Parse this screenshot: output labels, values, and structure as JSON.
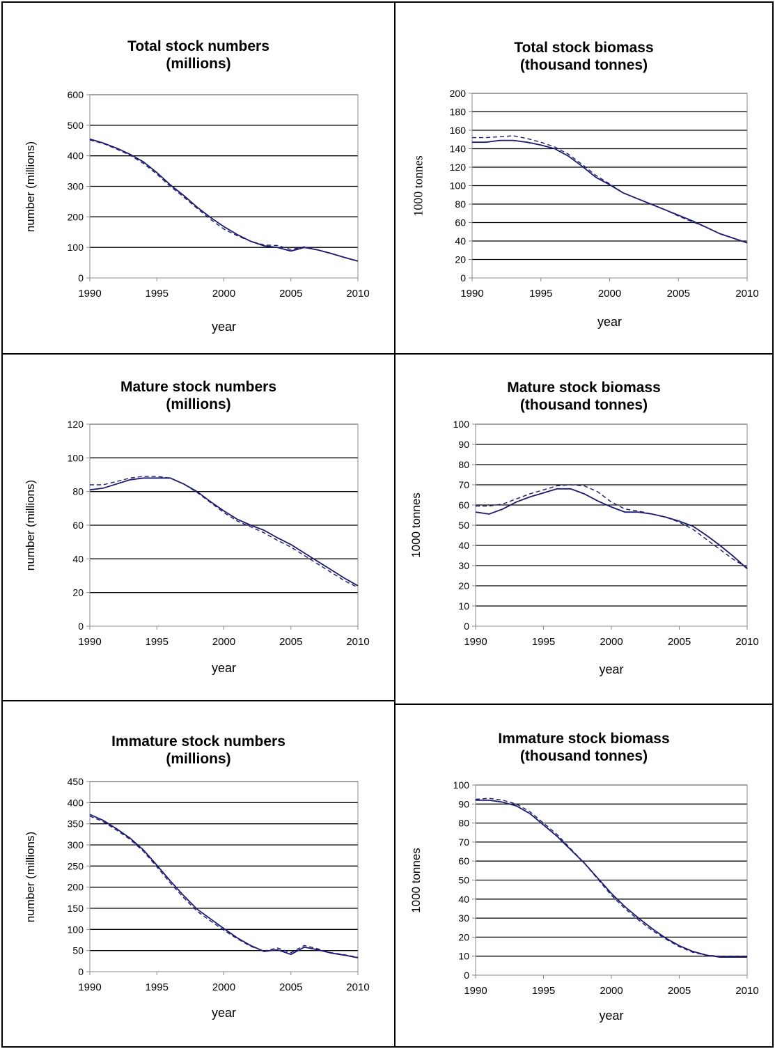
{
  "chart_data": [
    {
      "type": "line",
      "title": [
        "Total stock numbers",
        "(millions)"
      ],
      "xlabel": "year",
      "ylabel": "number (millions)",
      "ylim": [
        0,
        600
      ],
      "yticks": [
        0,
        100,
        200,
        300,
        400,
        500,
        600
      ],
      "xticks": [
        1990,
        1995,
        2000,
        2005,
        2010
      ],
      "x": [
        1990,
        1991,
        1992,
        1993,
        1994,
        1995,
        1996,
        1997,
        1998,
        1999,
        2000,
        2001,
        2002,
        2003,
        2004,
        2005,
        2006,
        2007,
        2008,
        2009,
        2010
      ],
      "series": [
        {
          "style": "solid",
          "values": [
            455,
            442,
            425,
            405,
            380,
            345,
            305,
            270,
            232,
            198,
            168,
            142,
            120,
            105,
            100,
            88,
            100,
            92,
            80,
            67,
            55
          ]
        },
        {
          "style": "dashed",
          "values": [
            452,
            440,
            422,
            402,
            375,
            340,
            300,
            265,
            228,
            192,
            160,
            138,
            120,
            108,
            106,
            93,
            102,
            92,
            80,
            67,
            55
          ]
        }
      ]
    },
    {
      "type": "line",
      "title": [
        "Total stock biomass",
        "(thousand tonnes)"
      ],
      "xlabel": "year",
      "ylabel": "1000 tonnes",
      "ylim": [
        0,
        200
      ],
      "yticks": [
        0,
        20,
        40,
        60,
        80,
        100,
        120,
        140,
        160,
        180,
        200
      ],
      "xticks": [
        1990,
        1995,
        2000,
        2005,
        2010
      ],
      "x": [
        1990,
        1991,
        1992,
        1993,
        1994,
        1995,
        1996,
        1997,
        1998,
        1999,
        2000,
        2001,
        2002,
        2003,
        2004,
        2005,
        2006,
        2007,
        2008,
        2009,
        2010
      ],
      "series": [
        {
          "style": "solid",
          "values": [
            147,
            147,
            149,
            149,
            147,
            144,
            140,
            132,
            121,
            109,
            101,
            92,
            86,
            80,
            74,
            68,
            62,
            55,
            48,
            43,
            38
          ]
        },
        {
          "style": "dashed",
          "values": [
            152,
            152,
            153,
            154,
            151,
            147,
            142,
            134,
            123,
            111,
            102,
            92,
            86,
            80,
            74,
            67,
            61,
            55,
            48,
            43,
            38
          ]
        }
      ]
    },
    {
      "type": "line",
      "title": [
        "Mature stock numbers",
        "(millions)"
      ],
      "xlabel": "year",
      "ylabel": "number (millions)",
      "ylim": [
        0,
        120
      ],
      "yticks": [
        0,
        20,
        40,
        60,
        80,
        100,
        120
      ],
      "xticks": [
        1990,
        1995,
        2000,
        2005,
        2010
      ],
      "x": [
        1990,
        1991,
        1992,
        1993,
        1994,
        1995,
        1996,
        1997,
        1998,
        1999,
        2000,
        2001,
        2002,
        2003,
        2004,
        2005,
        2006,
        2007,
        2008,
        2009,
        2010
      ],
      "series": [
        {
          "style": "solid",
          "values": [
            81,
            82,
            84.5,
            87,
            88,
            88,
            88,
            84.5,
            80,
            74,
            68.5,
            63.5,
            60,
            57,
            52.5,
            48.5,
            43.5,
            38.5,
            33.5,
            28.5,
            24
          ]
        },
        {
          "style": "dashed",
          "values": [
            84,
            84,
            86,
            88,
            89,
            89,
            88,
            84.5,
            79.5,
            73.5,
            67.5,
            62.5,
            59,
            55.5,
            51,
            47,
            42,
            37,
            32,
            27,
            23
          ]
        }
      ]
    },
    {
      "type": "line",
      "title": [
        "Mature stock biomass",
        "(thousand tonnes)"
      ],
      "xlabel": "year",
      "ylabel": "1000 tonnes",
      "ylim": [
        0,
        100
      ],
      "yticks": [
        0,
        10,
        20,
        30,
        40,
        50,
        60,
        70,
        80,
        90,
        100
      ],
      "xticks": [
        1990,
        1995,
        2000,
        2005,
        2010
      ],
      "x": [
        1990,
        1991,
        1992,
        1993,
        1994,
        1995,
        1996,
        1997,
        1998,
        1999,
        2000,
        2001,
        2002,
        2003,
        2004,
        2005,
        2006,
        2007,
        2008,
        2009,
        2010
      ],
      "series": [
        {
          "style": "solid",
          "values": [
            56.5,
            55.5,
            58,
            61.5,
            64,
            66,
            68,
            68,
            65.5,
            62,
            59,
            56.5,
            56.5,
            55.5,
            54,
            52,
            49.5,
            45,
            40,
            34.5,
            28.5
          ]
        },
        {
          "style": "dashed",
          "values": [
            59.5,
            59.5,
            60.5,
            63,
            65.5,
            67.5,
            69.5,
            70,
            69.5,
            66.5,
            61.5,
            58,
            57,
            55.5,
            54,
            51.5,
            48,
            43,
            38,
            33,
            29
          ]
        }
      ]
    },
    {
      "type": "line",
      "title": [
        "Immature stock numbers",
        "(millions)"
      ],
      "xlabel": "year",
      "ylabel": "number (millions)",
      "ylim": [
        0,
        450
      ],
      "yticks": [
        0,
        50,
        100,
        150,
        200,
        250,
        300,
        350,
        400,
        450
      ],
      "xticks": [
        1990,
        1995,
        2000,
        2005,
        2010
      ],
      "x": [
        1990,
        1991,
        1992,
        1993,
        1994,
        1995,
        1996,
        1997,
        1998,
        1999,
        2000,
        2001,
        2002,
        2003,
        2004,
        2005,
        2006,
        2007,
        2008,
        2009,
        2010
      ],
      "series": [
        {
          "style": "solid",
          "values": [
            372,
            358,
            338,
            316,
            288,
            252,
            215,
            180,
            148,
            125,
            102,
            80,
            62,
            48,
            52,
            41,
            58,
            52,
            44,
            39,
            33
          ]
        },
        {
          "style": "dashed",
          "values": [
            368,
            355,
            335,
            313,
            285,
            248,
            210,
            175,
            143,
            120,
            98,
            78,
            60,
            49,
            56,
            45,
            62,
            54,
            45,
            40,
            34
          ]
        }
      ]
    },
    {
      "type": "line",
      "title": [
        "Immature stock biomass",
        "(thousand tonnes)"
      ],
      "xlabel": "year",
      "ylabel": "1000 tonnes",
      "ylim": [
        0,
        100
      ],
      "yticks": [
        0,
        10,
        20,
        30,
        40,
        50,
        60,
        70,
        80,
        90,
        100
      ],
      "xticks": [
        1990,
        1995,
        2000,
        2005,
        2010
      ],
      "x": [
        1990,
        1991,
        1992,
        1993,
        1994,
        1995,
        1996,
        1997,
        1998,
        1999,
        2000,
        2001,
        2002,
        2003,
        2004,
        2005,
        2006,
        2007,
        2008,
        2009,
        2010
      ],
      "series": [
        {
          "style": "solid",
          "values": [
            92,
            92,
            91,
            89,
            85,
            79,
            73,
            66,
            59,
            51,
            43,
            36,
            30,
            24.5,
            19.5,
            15.5,
            12.5,
            10.5,
            9.5,
            9.5,
            9.5
          ]
        },
        {
          "style": "dashed",
          "values": [
            92.5,
            93,
            92,
            90,
            86,
            80,
            74,
            66.5,
            59,
            50.5,
            42,
            35,
            29,
            23.5,
            19,
            15,
            12,
            10.5,
            10,
            10,
            10
          ]
        }
      ]
    }
  ],
  "colors": {
    "line": "#1a1a6e",
    "grid": "#000000",
    "axis": "#888888"
  }
}
